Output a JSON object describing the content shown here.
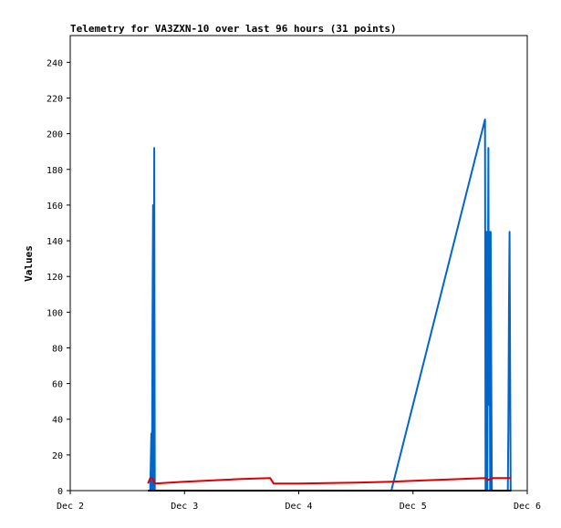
{
  "chart_data": {
    "type": "line",
    "title": "Telemetry for VA3ZXN-10 over last 96 hours (31 points)",
    "xlabel": "",
    "ylabel": "Values",
    "x_tick_labels": [
      "Dec 2",
      "Dec 3",
      "Dec 4",
      "Dec 5",
      "Dec 6"
    ],
    "x_unit": "days since Dec 2",
    "xlim": [
      0,
      4
    ],
    "ylim": [
      0,
      255
    ],
    "y_ticks": [
      0,
      20,
      40,
      60,
      80,
      100,
      120,
      140,
      160,
      180,
      200,
      220,
      240
    ],
    "grid": false,
    "series": [
      {
        "color": "#0066cc",
        "points": [
          [
            0.7,
            0
          ],
          [
            0.71,
            32
          ],
          [
            0.715,
            0
          ],
          [
            0.72,
            97
          ],
          [
            0.725,
            160
          ],
          [
            0.73,
            0
          ],
          [
            0.735,
            192
          ],
          [
            0.74,
            0
          ],
          [
            2.81,
            0
          ],
          [
            3.63,
            208
          ],
          [
            3.635,
            0
          ],
          [
            3.645,
            145
          ],
          [
            3.65,
            0
          ],
          [
            3.66,
            192
          ],
          [
            3.665,
            48
          ],
          [
            3.67,
            145
          ],
          [
            3.675,
            0
          ],
          [
            3.68,
            145
          ],
          [
            3.685,
            72
          ],
          [
            3.69,
            0
          ],
          [
            3.83,
            0
          ],
          [
            3.835,
            36
          ],
          [
            3.84,
            108
          ],
          [
            3.845,
            145
          ],
          [
            3.85,
            72
          ],
          [
            3.855,
            0
          ]
        ]
      },
      {
        "color": "#dd0000",
        "points": [
          [
            0.68,
            4
          ],
          [
            0.7,
            7
          ],
          [
            0.72,
            7
          ],
          [
            0.74,
            4
          ],
          [
            1.0,
            5
          ],
          [
            1.5,
            6.5
          ],
          [
            1.75,
            7
          ],
          [
            1.78,
            4
          ],
          [
            2.0,
            4
          ],
          [
            2.5,
            4.5
          ],
          [
            2.81,
            5
          ],
          [
            3.0,
            5.5
          ],
          [
            3.63,
            7
          ],
          [
            3.66,
            6
          ],
          [
            3.7,
            7
          ],
          [
            3.83,
            7
          ],
          [
            3.86,
            7
          ]
        ]
      },
      {
        "color": "#000000",
        "points": [
          [
            0.68,
            0
          ],
          [
            3.86,
            0
          ]
        ]
      }
    ]
  }
}
